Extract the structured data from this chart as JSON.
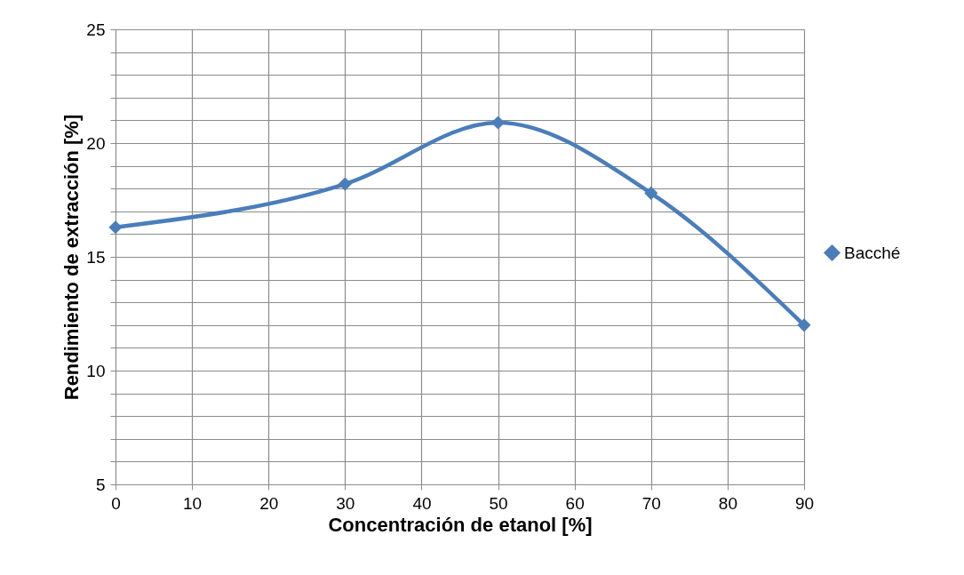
{
  "chart_data": {
    "type": "line",
    "xlabel": "Concentración de etanol [%]",
    "ylabel": "Rendimiento de extracción [%]",
    "x": [
      0,
      30,
      50,
      70,
      90
    ],
    "series": [
      {
        "name": "Bacché",
        "color": "#4a7ebb",
        "values": [
          16.3,
          18.2,
          20.9,
          17.8,
          12.0
        ]
      }
    ],
    "xlim": [
      0,
      90
    ],
    "xticks": [
      0,
      10,
      20,
      30,
      40,
      50,
      60,
      70,
      80,
      90
    ],
    "ylim": [
      5,
      25
    ],
    "yticks": [
      5,
      {
        "value": 6,
        "label": null
      },
      {
        "value": 7,
        "label": null
      },
      {
        "value": 8,
        "label": null
      },
      {
        "value": 9,
        "label": null
      },
      10,
      {
        "value": 11,
        "label": null
      },
      {
        "value": 12,
        "label": null
      },
      {
        "value": 13,
        "label": null
      },
      {
        "value": 14,
        "label": null
      },
      15,
      {
        "value": 16,
        "label": null
      },
      {
        "value": 17,
        "label": null
      },
      {
        "value": 18,
        "label": null
      },
      {
        "value": 19,
        "label": null
      },
      20,
      {
        "value": 21,
        "label": null
      },
      {
        "value": 22,
        "label": null
      },
      {
        "value": 23,
        "label": null
      },
      {
        "value": 24,
        "label": null
      },
      25
    ],
    "grid": true,
    "legend": "right",
    "marker": "diamond",
    "line_style": "solid"
  }
}
